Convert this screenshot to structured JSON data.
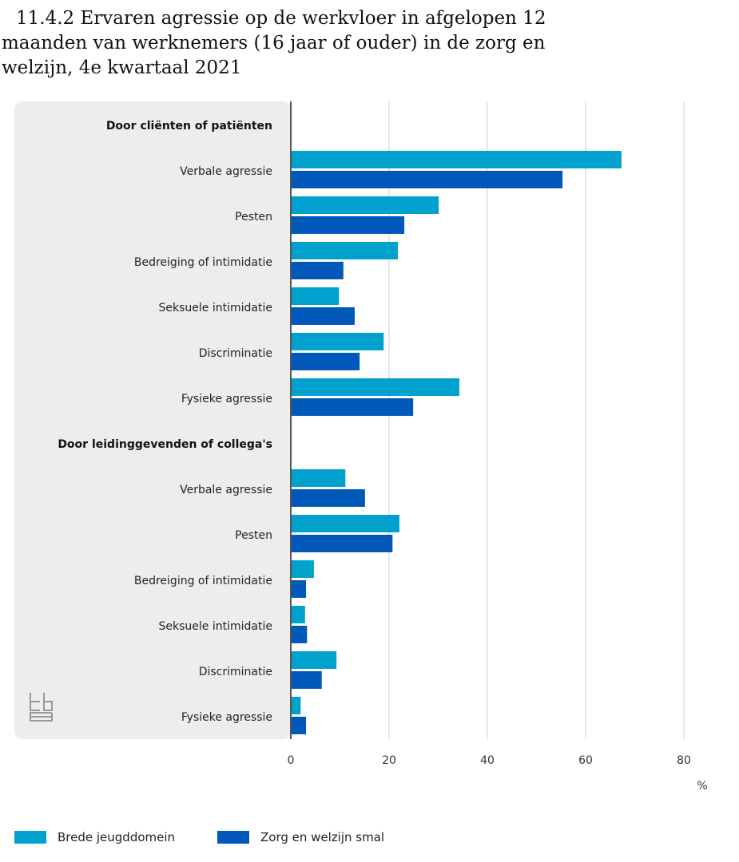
{
  "title": "11.4.2 Ervaren agressie op de werkvloer in afgelopen 12 maanden van werknemers (16 jaar of ouder) in de zorg en welzijn, 4e kwartaal 2021",
  "chart_data": {
    "type": "bar",
    "orientation": "horizontal",
    "title": "11.4.2 Ervaren agressie op de werkvloer in afgelopen 12 maanden van werknemers (16 jaar of ouder) in de zorg en welzijn, 4e kwartaal 2021",
    "xlabel": "%",
    "xlim": [
      0,
      80
    ],
    "xticks": [
      0,
      20,
      40,
      60,
      80
    ],
    "grid": true,
    "legend_position": "bottom-left",
    "groups": [
      {
        "name": "Door cliënten of patiënten",
        "categories": [
          "Verbale agressie",
          "Pesten",
          "Bedreiging of intimidatie",
          "Seksuele intimidatie",
          "Discriminatie",
          "Fysieke agressie"
        ],
        "series": [
          {
            "name": "Brede jeugddomein",
            "values": [
              67.3,
              30.1,
              21.8,
              9.8,
              18.9,
              34.3
            ]
          },
          {
            "name": "Zorg en welzijn smal",
            "values": [
              55.3,
              23.1,
              10.7,
              13.0,
              14.0,
              24.9
            ]
          }
        ]
      },
      {
        "name": "Door leidinggevenden of collega's",
        "categories": [
          "Verbale agressie",
          "Pesten",
          "Bedreiging of intimidatie",
          "Seksuele intimidatie",
          "Discriminatie",
          "Fysieke agressie"
        ],
        "series": [
          {
            "name": "Brede jeugddomein",
            "values": [
              11.1,
              22.1,
              4.7,
              2.9,
              9.3,
              2.0
            ]
          },
          {
            "name": "Zorg en welzijn smal",
            "values": [
              15.1,
              20.7,
              3.1,
              3.3,
              6.3,
              3.1
            ]
          }
        ]
      }
    ],
    "series_colors": [
      "#00a1cd",
      "#0058b8"
    ]
  },
  "legend": [
    {
      "label": "Brede jeugddomein",
      "color": "#00a1cd"
    },
    {
      "label": "Zorg en welzijn smal",
      "color": "#0058b8"
    }
  ]
}
